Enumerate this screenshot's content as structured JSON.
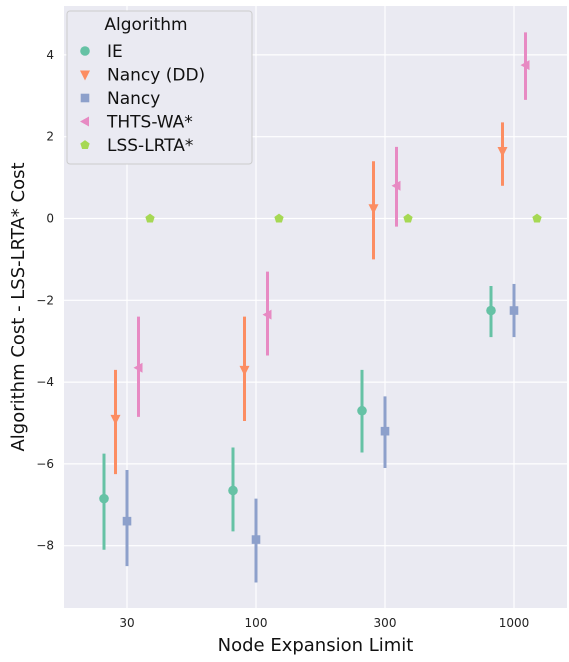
{
  "chart_data": {
    "type": "pointplot",
    "xlabel": "Node Expansion Limit",
    "ylabel": "Algorithm Cost - LSS-LRTA* Cost",
    "categories": [
      "30",
      "100",
      "300",
      "1000"
    ],
    "ylim": [
      -9.6,
      5.3
    ],
    "yticks": [
      4,
      2,
      0,
      -2,
      -4,
      -6,
      -8
    ],
    "ytick_labels": [
      "4",
      "2",
      "0",
      "−2",
      "−4",
      "−6",
      "−8"
    ],
    "grid": true,
    "background": "#eaeaf2",
    "legend": {
      "title": "Algorithm",
      "placement": "top-left"
    },
    "series": [
      {
        "name": "IE",
        "color": "#66c2a5",
        "marker": "circle",
        "values": [
          -6.85,
          -6.65,
          -4.7,
          -2.25
        ],
        "ci_low": [
          -8.1,
          -7.65,
          -5.72,
          -2.9
        ],
        "ci_high": [
          -5.75,
          -5.6,
          -3.7,
          -1.65
        ]
      },
      {
        "name": "Nancy (DD)",
        "color": "#fc8d62",
        "marker": "triangle-down",
        "values": [
          -4.9,
          -3.7,
          0.25,
          1.65
        ],
        "ci_low": [
          -6.25,
          -4.95,
          -1.0,
          0.8
        ],
        "ci_high": [
          -3.7,
          -2.4,
          1.4,
          2.35
        ]
      },
      {
        "name": "Nancy",
        "color": "#8da0cb",
        "marker": "square",
        "values": [
          -7.4,
          -7.85,
          -5.2,
          -2.25
        ],
        "ci_low": [
          -8.5,
          -8.9,
          -6.1,
          -2.9
        ],
        "ci_high": [
          -6.15,
          -6.85,
          -4.35,
          -1.6
        ]
      },
      {
        "name": "THTS-WA*",
        "color": "#e78ac3",
        "marker": "triangle-left",
        "values": [
          -3.65,
          -2.35,
          0.8,
          3.75
        ],
        "ci_low": [
          -4.85,
          -3.35,
          -0.2,
          2.9
        ],
        "ci_high": [
          -2.4,
          -1.3,
          1.75,
          4.55
        ]
      },
      {
        "name": "LSS-LRTA*",
        "color": "#a6d854",
        "marker": "pentagon",
        "values": [
          0,
          0,
          0,
          0
        ],
        "ci_low": [
          0,
          0,
          0,
          0
        ],
        "ci_high": [
          0,
          0,
          0,
          0
        ]
      }
    ]
  }
}
